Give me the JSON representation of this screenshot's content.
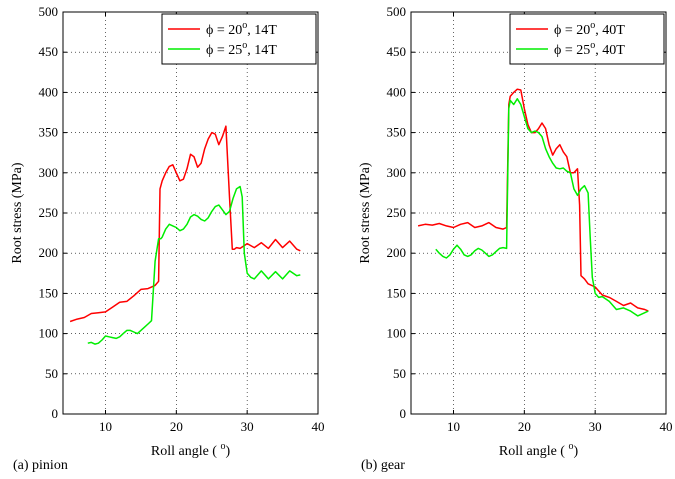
{
  "chart_data": [
    {
      "type": "line",
      "caption": "(a) pinion",
      "xlabel": "Roll angle ( ",
      "xlabel_sup": "o",
      "xlabel_end": ")",
      "ylabel": "Root stress (MPa)",
      "xlim": [
        4,
        40
      ],
      "ylim": [
        0,
        500
      ],
      "xticks": [
        10,
        20,
        30,
        40
      ],
      "yticks": [
        0,
        50,
        100,
        150,
        200,
        250,
        300,
        350,
        400,
        450,
        500
      ],
      "grid": true,
      "legend_position": "top-right",
      "series": [
        {
          "name": "ϕ = 20°, 14T",
          "legend": {
            "prefix": "ϕ = 20",
            "sup": "o",
            "suffix": ", 14T"
          },
          "color": "#ff0000",
          "x": [
            5,
            6,
            7,
            8,
            9,
            10,
            11,
            12,
            13,
            14,
            15,
            16,
            17,
            17.5,
            17.7,
            18,
            18.5,
            19,
            19.5,
            20,
            20.5,
            21,
            21.5,
            22,
            22.5,
            23,
            23.5,
            24,
            24.5,
            25,
            25.5,
            26,
            26.5,
            27,
            27.5,
            27.9,
            28.2,
            28.5,
            29,
            30,
            31,
            32,
            33,
            34,
            35,
            36,
            37,
            37.5
          ],
          "y": [
            115,
            118,
            120,
            125,
            126,
            127,
            133,
            139,
            140,
            147,
            155,
            156,
            160,
            165,
            280,
            290,
            300,
            308,
            310,
            300,
            290,
            292,
            305,
            323,
            320,
            307,
            312,
            330,
            342,
            350,
            348,
            335,
            345,
            358,
            270,
            205,
            205,
            207,
            206,
            212,
            207,
            213,
            206,
            217,
            207,
            215,
            205,
            203
          ]
        },
        {
          "name": "ϕ = 25°, 14T",
          "legend": {
            "prefix": "ϕ = 25",
            "sup": "o",
            "suffix": ", 14T"
          },
          "color": "#00ee00",
          "x": [
            7.5,
            8,
            8.5,
            9,
            9.5,
            10,
            10.5,
            11,
            11.5,
            12,
            12.5,
            13,
            13.5,
            14,
            14.5,
            15,
            15.5,
            16,
            16.5,
            17,
            17.5,
            17.8,
            18,
            18.5,
            19,
            19.5,
            20,
            20.5,
            21,
            21.5,
            22,
            22.5,
            23,
            23.5,
            24,
            24.5,
            25,
            25.5,
            26,
            26.5,
            27,
            27.5,
            28,
            28.5,
            29,
            29.3,
            29.6,
            30,
            30.5,
            31,
            32,
            33,
            34,
            35,
            36,
            37,
            37.5
          ],
          "y": [
            88,
            89,
            87,
            88,
            92,
            97,
            96,
            95,
            94,
            96,
            100,
            104,
            104,
            102,
            100,
            104,
            108,
            112,
            116,
            190,
            218,
            218,
            220,
            230,
            236,
            234,
            232,
            228,
            230,
            236,
            245,
            248,
            246,
            242,
            240,
            244,
            252,
            258,
            260,
            254,
            248,
            252,
            268,
            280,
            283,
            270,
            200,
            175,
            170,
            168,
            178,
            168,
            177,
            168,
            178,
            172,
            173
          ]
        }
      ]
    },
    {
      "type": "line",
      "caption": "(b) gear",
      "xlabel": "Roll angle ( ",
      "xlabel_sup": "o",
      "xlabel_end": ")",
      "ylabel": "Root stress (MPa)",
      "xlim": [
        4,
        40
      ],
      "ylim": [
        0,
        500
      ],
      "xticks": [
        10,
        20,
        30,
        40
      ],
      "yticks": [
        0,
        50,
        100,
        150,
        200,
        250,
        300,
        350,
        400,
        450,
        500
      ],
      "grid": true,
      "legend_position": "top-right",
      "series": [
        {
          "name": "ϕ = 20°, 40T",
          "legend": {
            "prefix": "ϕ = 20",
            "sup": "o",
            "suffix": ", 40T"
          },
          "color": "#ff0000",
          "x": [
            5,
            6,
            7,
            8,
            9,
            10,
            11,
            12,
            13,
            14,
            15,
            16,
            17,
            17.5,
            17.8,
            18,
            18.5,
            19,
            19.5,
            20,
            20.5,
            21,
            21.5,
            22,
            22.5,
            23,
            23.5,
            24,
            24.5,
            25,
            25.5,
            26,
            26.5,
            27,
            27.5,
            27.8,
            28,
            28.5,
            29,
            30,
            31,
            32,
            33,
            34,
            35,
            36,
            37,
            37.5
          ],
          "y": [
            234,
            236,
            235,
            237,
            234,
            232,
            236,
            238,
            232,
            234,
            238,
            232,
            230,
            232,
            385,
            395,
            400,
            404,
            403,
            380,
            360,
            350,
            350,
            355,
            362,
            355,
            335,
            322,
            330,
            335,
            326,
            320,
            300,
            300,
            305,
            260,
            172,
            168,
            162,
            158,
            148,
            145,
            140,
            135,
            138,
            132,
            130,
            128
          ]
        },
        {
          "name": "ϕ = 25°, 40T",
          "legend": {
            "prefix": "ϕ = 25",
            "sup": "o",
            "suffix": ", 40T"
          },
          "color": "#00ee00",
          "x": [
            7.5,
            8,
            8.5,
            9,
            9.5,
            10,
            10.5,
            11,
            11.5,
            12,
            12.5,
            13,
            13.5,
            14,
            14.5,
            15,
            15.5,
            16,
            16.5,
            17,
            17.5,
            17.8,
            18,
            18.5,
            19,
            19.5,
            20,
            20.5,
            21,
            21.5,
            22,
            22.5,
            23,
            23.5,
            24,
            24.5,
            25,
            25.5,
            26,
            26.5,
            27,
            27.5,
            28,
            28.5,
            29,
            29.3,
            29.6,
            30,
            30.5,
            31,
            32,
            33,
            34,
            35,
            36,
            37,
            37.5
          ],
          "y": [
            205,
            200,
            196,
            194,
            198,
            205,
            210,
            205,
            198,
            196,
            198,
            203,
            206,
            204,
            200,
            196,
            198,
            202,
            206,
            207,
            206,
            380,
            390,
            385,
            392,
            385,
            370,
            355,
            350,
            352,
            350,
            345,
            330,
            320,
            312,
            306,
            305,
            306,
            302,
            300,
            280,
            272,
            280,
            284,
            275,
            220,
            170,
            150,
            145,
            146,
            140,
            130,
            132,
            128,
            122,
            126,
            128
          ]
        }
      ]
    }
  ]
}
